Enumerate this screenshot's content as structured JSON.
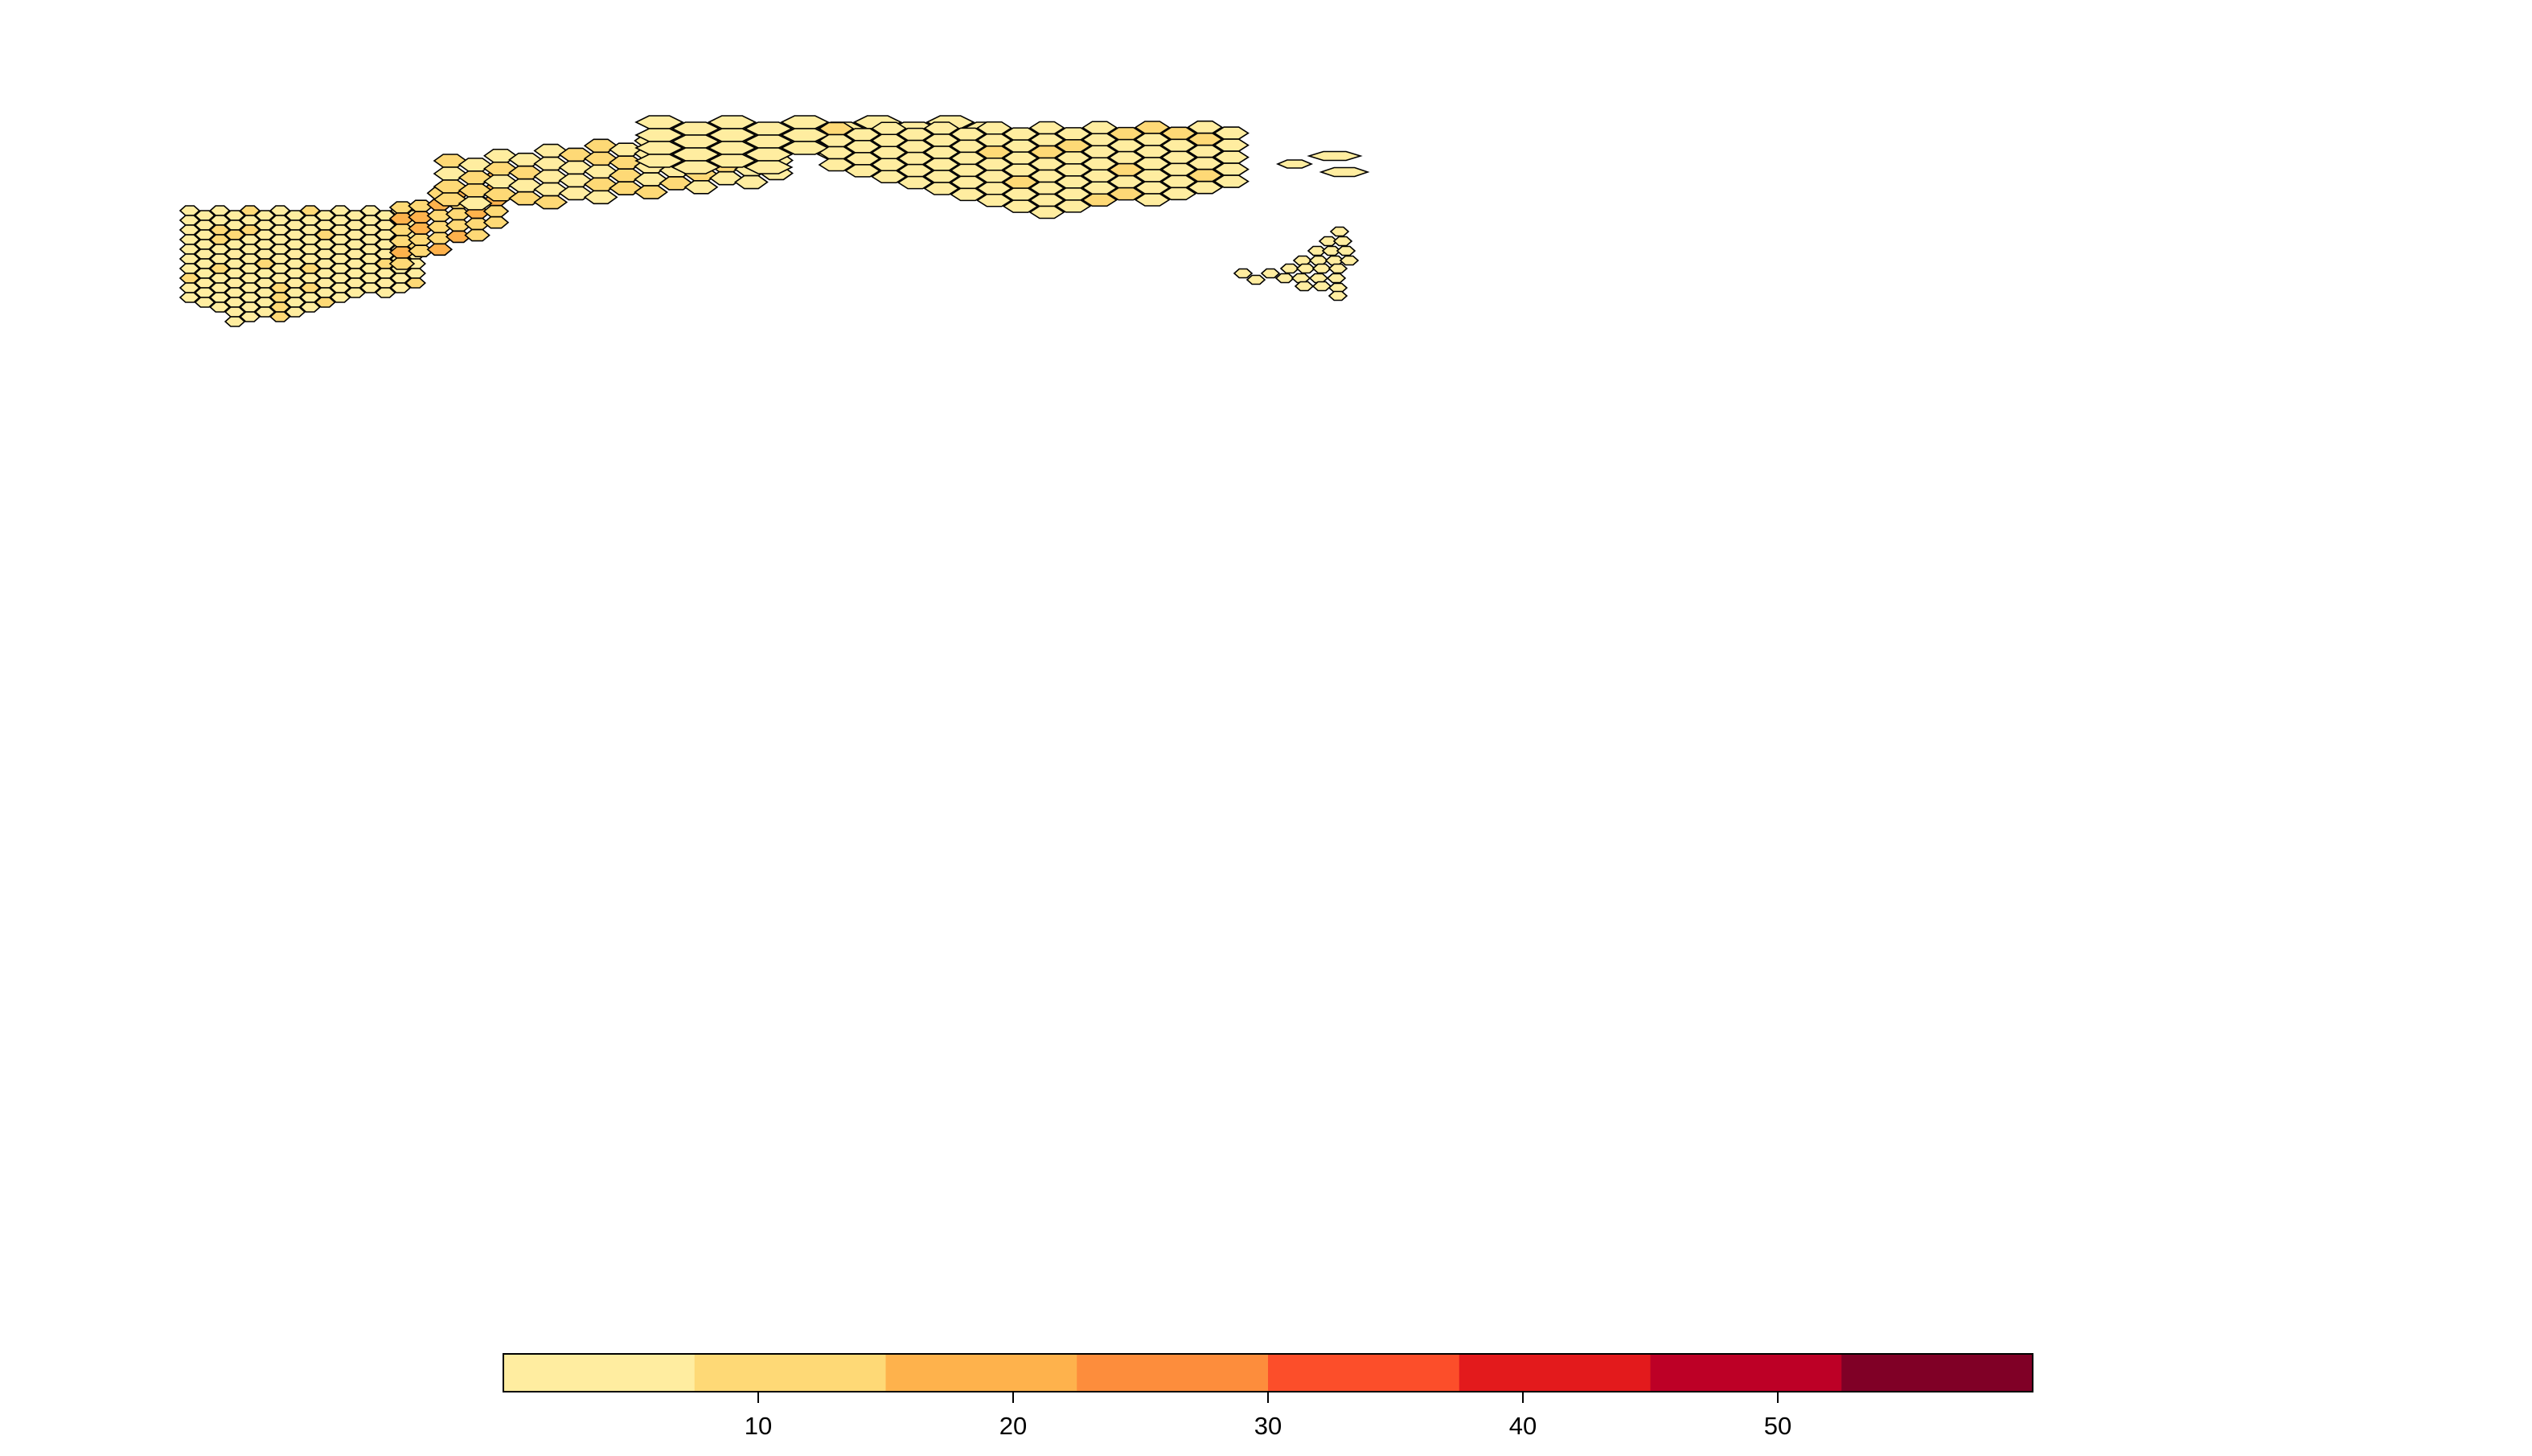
{
  "map": {
    "type": "hexbin-choropleth",
    "fill_values": {
      "light": 4,
      "medium": 11,
      "strong": 16
    }
  },
  "legend": {
    "type": "color-key",
    "breaks": [
      0,
      7.5,
      15,
      22.5,
      30,
      37.5,
      45,
      52.5,
      60
    ],
    "colors": [
      "#FFEDA0",
      "#FED976",
      "#FEB24C",
      "#FD8D3C",
      "#FC4E2A",
      "#E31A1C",
      "#BD0026",
      "#800026"
    ],
    "ticks": [
      {
        "value": 10,
        "label": "10"
      },
      {
        "value": 20,
        "label": "20"
      },
      {
        "value": 30,
        "label": "30"
      },
      {
        "value": 40,
        "label": "40"
      },
      {
        "value": 50,
        "label": "50"
      }
    ]
  }
}
